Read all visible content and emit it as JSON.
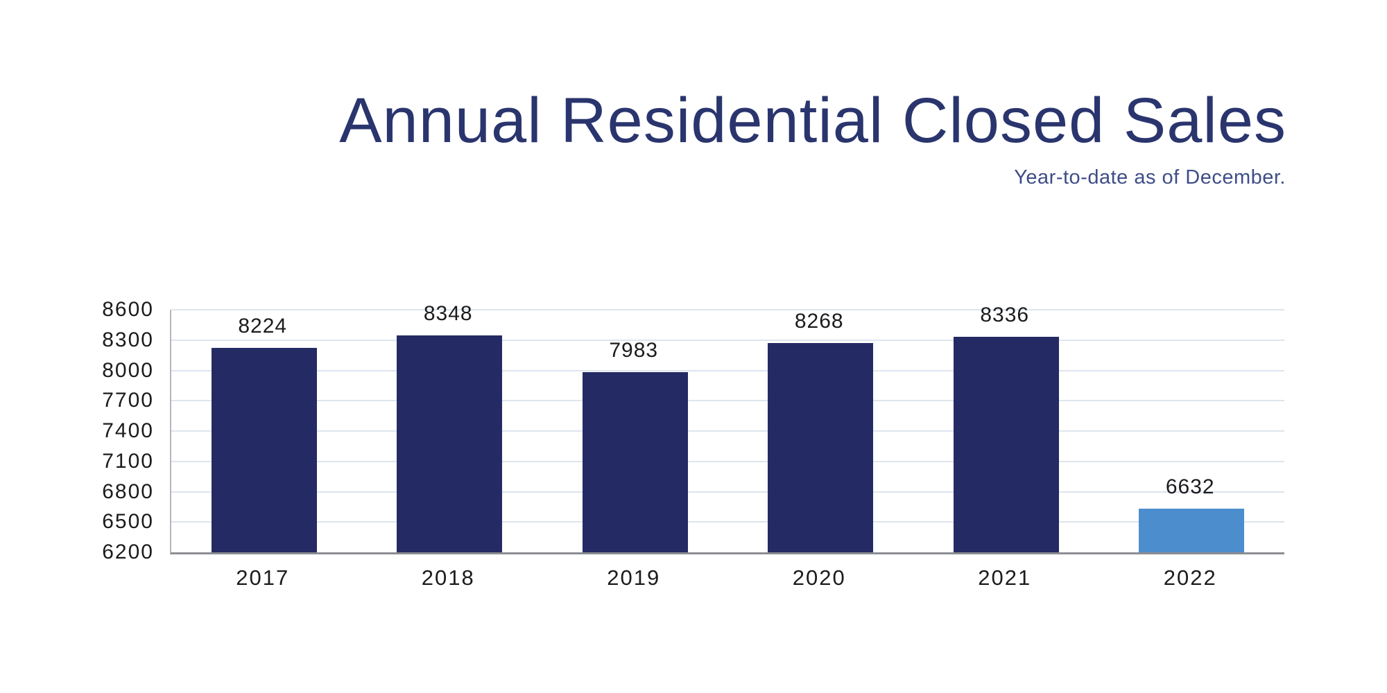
{
  "header": {
    "title": "Annual Residential Closed Sales",
    "subtitle": "Year-to-date as of December.",
    "title_color": "#2a356e",
    "subtitle_color": "#3e4d88"
  },
  "chart_data": {
    "type": "bar",
    "title": "Annual Residential Closed Sales",
    "subtitle": "Year-to-date as of December.",
    "categories": [
      "2017",
      "2018",
      "2019",
      "2020",
      "2021",
      "2022"
    ],
    "values": [
      8224,
      8348,
      7983,
      8268,
      8336,
      6632
    ],
    "data_labels": [
      8224,
      8348,
      7983,
      8268,
      8336,
      6632
    ],
    "bar_colors": [
      "#242b64",
      "#242b64",
      "#242b64",
      "#242b64",
      "#242b64",
      "#4c8ecd"
    ],
    "xlabel": "",
    "ylabel": "",
    "ylim": [
      6200,
      8600
    ],
    "yticks": [
      6200,
      6500,
      6800,
      7100,
      7400,
      7700,
      8000,
      8300,
      8600
    ],
    "grid": true,
    "legend": false,
    "colors": {
      "bar_default": "#242b64",
      "bar_highlight": "#4c8ecd",
      "gridline": "#dde5ee",
      "y_axis_line": "#b5b6bc",
      "x_axis_line": "#8c8d92",
      "tick_label": "#1b1b1b",
      "value_label": "#1b1b1b"
    }
  }
}
